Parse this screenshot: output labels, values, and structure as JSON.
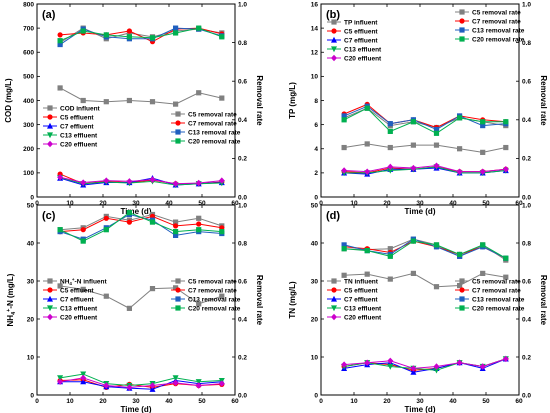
{
  "chart_data": [
    {
      "type": "line",
      "panel_label": "(a)",
      "xlabel": "Time (d)",
      "ylabel": "COD (mg/L)",
      "ylabel2": "Removal rate",
      "xlim": [
        0,
        60
      ],
      "xticks": [
        0,
        10,
        20,
        30,
        40,
        50,
        60
      ],
      "ylim": [
        0,
        800
      ],
      "yticks": [
        0,
        100,
        200,
        300,
        400,
        500,
        600,
        700,
        800
      ],
      "ylim2": [
        0,
        1.0
      ],
      "yticks2": [
        0.0,
        0.2,
        0.4,
        0.6,
        0.8,
        1.0
      ],
      "x": [
        7,
        14,
        21,
        28,
        35,
        42,
        49,
        56
      ],
      "series": [
        {
          "name": "COD influent",
          "axis": "left",
          "color": "#808080",
          "marker": "square",
          "values": [
            452,
            400,
            395,
            400,
            395,
            385,
            432,
            410
          ]
        },
        {
          "name": "C5 effluent",
          "axis": "left",
          "color": "#ff0000",
          "marker": "circle",
          "values": [
            95,
            55,
            65,
            60,
            70,
            55,
            55,
            62
          ]
        },
        {
          "name": "C7 effluent",
          "axis": "left",
          "color": "#0000ff",
          "marker": "triangle",
          "values": [
            78,
            50,
            60,
            60,
            78,
            50,
            55,
            60
          ]
        },
        {
          "name": "C13 effluent",
          "axis": "left",
          "color": "#00b050",
          "marker": "triangle-down",
          "values": [
            80,
            55,
            62,
            58,
            65,
            50,
            55,
            58
          ]
        },
        {
          "name": "C20 effluent",
          "axis": "left",
          "color": "#cc00cc",
          "marker": "diamond",
          "values": [
            82,
            60,
            68,
            65,
            72,
            55,
            58,
            68
          ]
        },
        {
          "name": "C5 removal rate",
          "axis": "right",
          "color": "#808080",
          "marker": "square",
          "values": [
            0.8,
            0.875,
            0.82,
            0.85,
            0.83,
            0.86,
            0.87,
            0.85
          ]
        },
        {
          "name": "C7 removal rate",
          "axis": "right",
          "color": "#ff0000",
          "marker": "circle",
          "values": [
            0.84,
            0.85,
            0.84,
            0.86,
            0.805,
            0.87,
            0.875,
            0.845
          ]
        },
        {
          "name": "C13 removal rate",
          "axis": "right",
          "color": "#1f5fbf",
          "marker": "square",
          "values": [
            0.79,
            0.87,
            0.83,
            0.82,
            0.82,
            0.875,
            0.87,
            0.835
          ]
        },
        {
          "name": "C20 removal rate",
          "axis": "right",
          "color": "#00b050",
          "marker": "square",
          "values": [
            0.81,
            0.86,
            0.84,
            0.83,
            0.825,
            0.85,
            0.875,
            0.83
          ]
        }
      ]
    },
    {
      "type": "line",
      "panel_label": "(b)",
      "xlabel": "Time (d)",
      "ylabel": "TP (mg/L)",
      "ylabel2": "Removal rate",
      "xlim": [
        0,
        60
      ],
      "xticks": [
        0,
        10,
        20,
        30,
        40,
        50,
        60
      ],
      "ylim": [
        0,
        16
      ],
      "yticks": [
        0,
        2,
        4,
        6,
        8,
        10,
        12,
        14,
        16
      ],
      "ylim2": [
        0,
        1.0
      ],
      "yticks2": [
        0.0,
        0.2,
        0.4,
        0.6,
        0.8,
        1.0
      ],
      "x": [
        7,
        14,
        21,
        28,
        35,
        42,
        49,
        56
      ],
      "series": [
        {
          "name": "TP influent",
          "axis": "left",
          "color": "#808080",
          "marker": "square",
          "values": [
            4.1,
            4.4,
            4.1,
            4.3,
            4.3,
            4.0,
            3.7,
            4.1
          ]
        },
        {
          "name": "C5 effluent",
          "axis": "left",
          "color": "#ff0000",
          "marker": "circle",
          "values": [
            2.1,
            2.0,
            2.4,
            2.3,
            2.5,
            2.1,
            2.1,
            2.3
          ]
        },
        {
          "name": "C7 effluent",
          "axis": "left",
          "color": "#0000ff",
          "marker": "triangle",
          "values": [
            2.0,
            1.9,
            2.3,
            2.3,
            2.4,
            2.0,
            2.0,
            2.2
          ]
        },
        {
          "name": "C13 effluent",
          "axis": "left",
          "color": "#00b050",
          "marker": "triangle-down",
          "values": [
            2.0,
            2.0,
            2.2,
            2.3,
            2.5,
            2.0,
            2.0,
            2.2
          ]
        },
        {
          "name": "C20 effluent",
          "axis": "left",
          "color": "#cc00cc",
          "marker": "diamond",
          "values": [
            2.2,
            2.1,
            2.5,
            2.4,
            2.6,
            2.1,
            2.1,
            2.3
          ]
        },
        {
          "name": "C5 removal rate",
          "axis": "right",
          "color": "#808080",
          "marker": "square",
          "values": [
            0.41,
            0.46,
            0.37,
            0.39,
            0.36,
            0.41,
            0.39,
            0.37
          ]
        },
        {
          "name": "C7 removal rate",
          "axis": "right",
          "color": "#ff0000",
          "marker": "circle",
          "values": [
            0.43,
            0.48,
            0.38,
            0.4,
            0.36,
            0.42,
            0.4,
            0.39
          ]
        },
        {
          "name": "C13 removal rate",
          "axis": "right",
          "color": "#1f5fbf",
          "marker": "square",
          "values": [
            0.42,
            0.47,
            0.38,
            0.4,
            0.35,
            0.42,
            0.37,
            0.38
          ]
        },
        {
          "name": "C20 removal rate",
          "axis": "right",
          "color": "#00b050",
          "marker": "square",
          "values": [
            0.4,
            0.46,
            0.34,
            0.39,
            0.33,
            0.41,
            0.39,
            0.39
          ]
        }
      ]
    },
    {
      "type": "line",
      "panel_label": "(c)",
      "xlabel": "Time (d)",
      "ylabel": "NH4+-N (mg/L)",
      "ylabel2": "Removal rate",
      "xlim": [
        0,
        60
      ],
      "xticks": [
        0,
        10,
        20,
        30,
        40,
        50,
        60
      ],
      "ylim": [
        0,
        50
      ],
      "yticks": [
        0,
        10,
        20,
        30,
        40,
        50
      ],
      "ylim2": [
        0,
        1.0
      ],
      "yticks2": [
        0.0,
        0.2,
        0.4,
        0.6,
        0.8,
        1.0
      ],
      "x": [
        7,
        14,
        21,
        28,
        35,
        42,
        49,
        56
      ],
      "series": [
        {
          "name": "NH4+-N influent",
          "axis": "left",
          "color": "#808080",
          "marker": "square",
          "values": [
            28.7,
            27.8,
            26.0,
            22.8,
            28.0,
            28.2,
            24.0,
            26.0
          ]
        },
        {
          "name": "C5 effluent",
          "axis": "left",
          "color": "#ff0000",
          "marker": "circle",
          "values": [
            3.8,
            4.0,
            2.0,
            2.8,
            2.0,
            3.0,
            2.5,
            2.8
          ]
        },
        {
          "name": "C7 effluent",
          "axis": "left",
          "color": "#0000ff",
          "marker": "triangle",
          "values": [
            3.5,
            3.5,
            2.2,
            1.8,
            1.5,
            3.8,
            3.0,
            3.5
          ]
        },
        {
          "name": "C13 effluent",
          "axis": "left",
          "color": "#00b050",
          "marker": "triangle-down",
          "values": [
            4.5,
            5.5,
            3.0,
            2.5,
            3.0,
            4.5,
            3.5,
            3.8
          ]
        },
        {
          "name": "C20 effluent",
          "axis": "left",
          "color": "#cc00cc",
          "marker": "diamond",
          "values": [
            3.5,
            4.5,
            2.5,
            2.0,
            2.5,
            3.2,
            2.5,
            3.0
          ]
        },
        {
          "name": "C5 removal rate",
          "axis": "right",
          "color": "#808080",
          "marker": "square",
          "values": [
            0.87,
            0.88,
            0.94,
            0.92,
            0.95,
            0.91,
            0.93,
            0.89
          ]
        },
        {
          "name": "C7 removal rate",
          "axis": "right",
          "color": "#ff0000",
          "marker": "circle",
          "values": [
            0.86,
            0.87,
            0.93,
            0.91,
            0.94,
            0.89,
            0.9,
            0.88
          ]
        },
        {
          "name": "C13 removal rate",
          "axis": "right",
          "color": "#1f5fbf",
          "marker": "square",
          "values": [
            0.86,
            0.82,
            0.88,
            0.95,
            0.92,
            0.84,
            0.86,
            0.85
          ]
        },
        {
          "name": "C20 removal rate",
          "axis": "right",
          "color": "#00b050",
          "marker": "square",
          "values": [
            0.87,
            0.81,
            0.87,
            0.96,
            0.91,
            0.86,
            0.87,
            0.86
          ]
        }
      ]
    },
    {
      "type": "line",
      "panel_label": "(d)",
      "xlabel": "Time (d)",
      "ylabel": "TN (mg/L)",
      "ylabel2": "Removal rate",
      "xlim": [
        0,
        60
      ],
      "xticks": [
        0,
        10,
        20,
        30,
        40,
        50,
        60
      ],
      "ylim": [
        0,
        50
      ],
      "yticks": [
        0,
        10,
        20,
        30,
        40,
        50
      ],
      "ylim2": [
        0,
        1.0
      ],
      "yticks2": [
        0.0,
        0.2,
        0.4,
        0.6,
        0.8,
        1.0
      ],
      "x": [
        7,
        14,
        21,
        28,
        35,
        42,
        49,
        56
      ],
      "series": [
        {
          "name": "TN influent",
          "axis": "left",
          "color": "#808080",
          "marker": "square",
          "values": [
            31.5,
            31.8,
            30.5,
            32.0,
            28.5,
            28.8,
            32.0,
            31.0
          ]
        },
        {
          "name": "C5 effluent",
          "axis": "left",
          "color": "#ff0000",
          "marker": "circle",
          "values": [
            7.5,
            8.5,
            8.0,
            6.5,
            7.0,
            8.5,
            7.5,
            9.5
          ]
        },
        {
          "name": "C7 effluent",
          "axis": "left",
          "color": "#0000ff",
          "marker": "triangle",
          "values": [
            7.0,
            8.0,
            8.5,
            6.0,
            7.0,
            8.5,
            7.0,
            9.5
          ]
        },
        {
          "name": "C13 effluent",
          "axis": "left",
          "color": "#00b050",
          "marker": "triangle-down",
          "values": [
            7.5,
            8.5,
            7.5,
            7.0,
            6.5,
            8.5,
            7.5,
            9.5
          ]
        },
        {
          "name": "C20 effluent",
          "axis": "left",
          "color": "#cc00cc",
          "marker": "diamond",
          "values": [
            8.0,
            8.5,
            9.0,
            7.0,
            7.5,
            8.5,
            7.5,
            9.5
          ]
        },
        {
          "name": "C5 removal rate",
          "axis": "right",
          "color": "#808080",
          "marker": "square",
          "values": [
            0.77,
            0.765,
            0.77,
            0.82,
            0.79,
            0.73,
            0.79,
            0.71
          ]
        },
        {
          "name": "C7 removal rate",
          "axis": "right",
          "color": "#ff0000",
          "marker": "circle",
          "values": [
            0.78,
            0.77,
            0.75,
            0.81,
            0.78,
            0.74,
            0.78,
            0.72
          ]
        },
        {
          "name": "C13 removal rate",
          "axis": "right",
          "color": "#1f5fbf",
          "marker": "square",
          "values": [
            0.79,
            0.76,
            0.74,
            0.82,
            0.78,
            0.73,
            0.78,
            0.72
          ]
        },
        {
          "name": "C20 removal rate",
          "axis": "right",
          "color": "#00b050",
          "marker": "square",
          "values": [
            0.77,
            0.76,
            0.73,
            0.81,
            0.79,
            0.74,
            0.79,
            0.72
          ]
        }
      ]
    }
  ]
}
